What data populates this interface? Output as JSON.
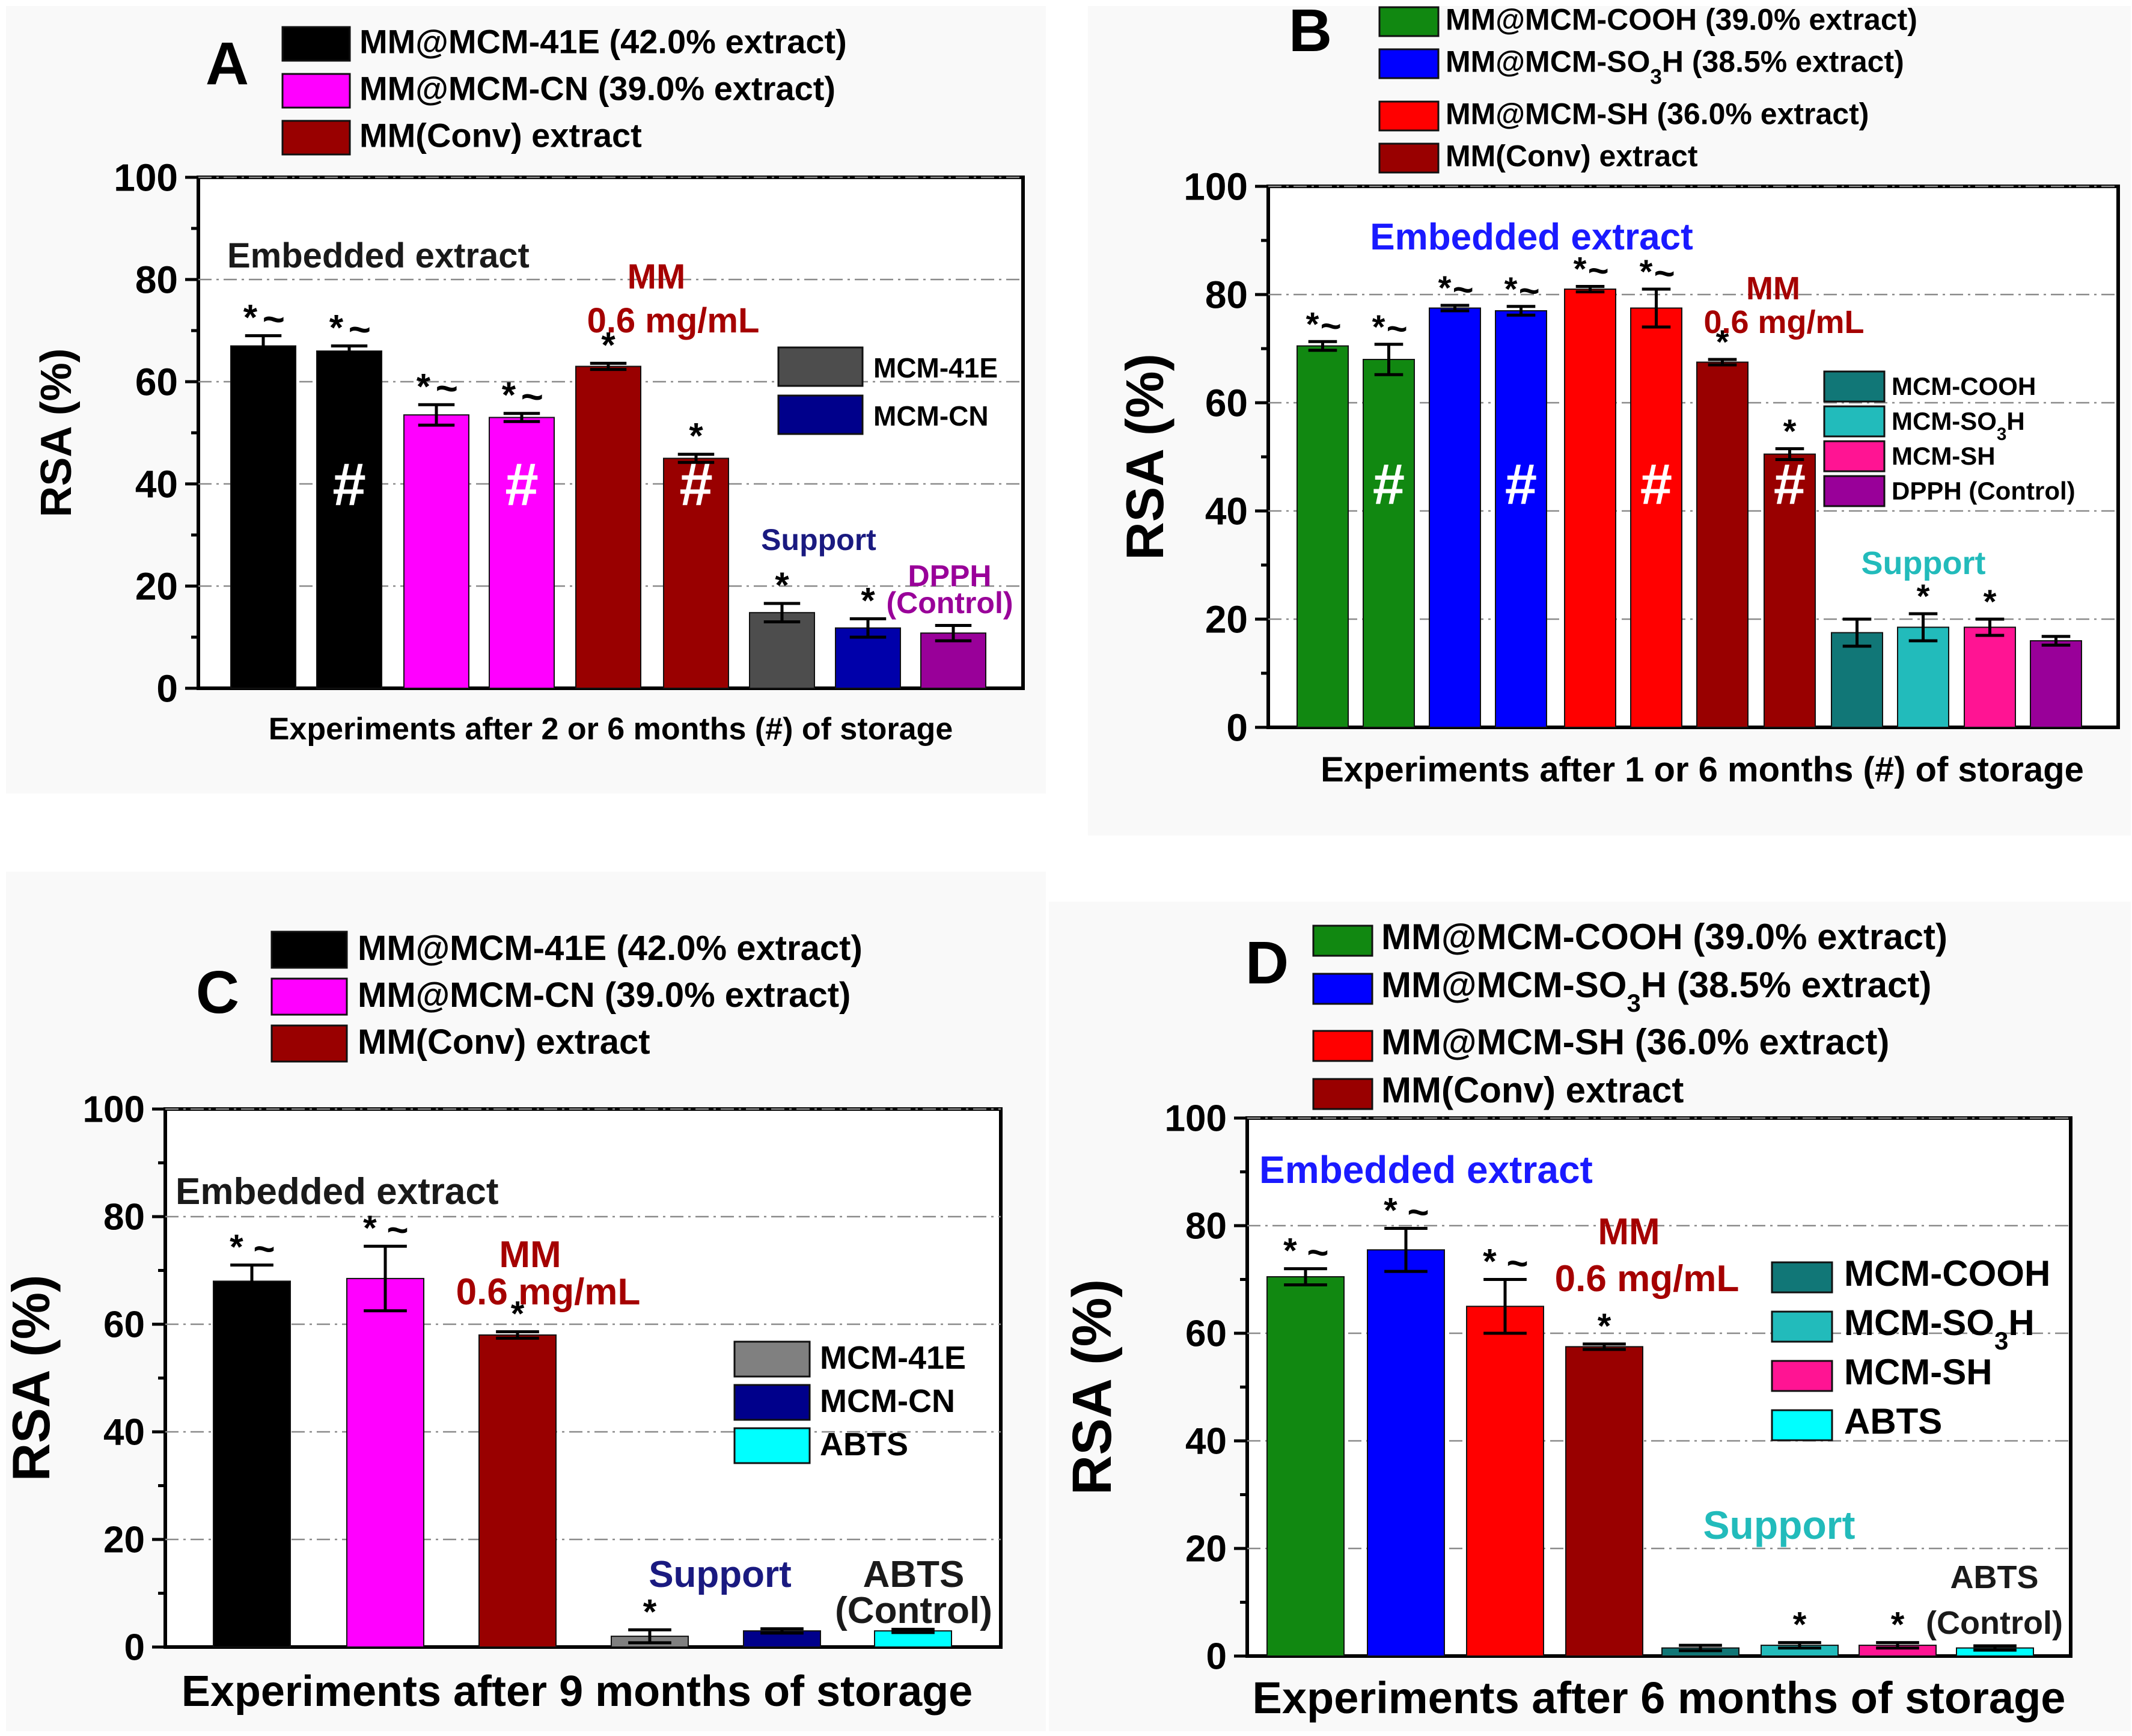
{
  "chart_data": [
    {
      "panel": "A",
      "type": "bar",
      "ylabel": "RSA (%)",
      "xlabel": "Experiments after 2 or 6 months (#) of storage",
      "ylim": [
        0,
        100
      ],
      "yticks": [
        "0",
        "20",
        "40",
        "60",
        "80",
        "100"
      ],
      "legend_top": [
        {
          "label": "MM@MCM-41E (42.0% extract)",
          "color": "#000000"
        },
        {
          "label": "MM@MCM-CN (39.0% extract)",
          "color": "#ff00ff"
        },
        {
          "label": "MM(Conv) extract",
          "color": "#990000"
        }
      ],
      "legend_inner": [
        {
          "label": "MCM-41E",
          "color": "#4d4d4d"
        },
        {
          "label": "MCM-CN",
          "color": "#00008b"
        }
      ],
      "bars": [
        {
          "value": 67,
          "error": 2.0,
          "color": "#000000",
          "star": "*",
          "tilde": "~",
          "hash": ""
        },
        {
          "value": 66,
          "error": 1.0,
          "color": "#000000",
          "star": "*",
          "tilde": "~",
          "hash": "#"
        },
        {
          "value": 53.5,
          "error": 2.0,
          "color": "#ff00ff",
          "star": "*",
          "tilde": "~",
          "hash": ""
        },
        {
          "value": 53,
          "error": 0.8,
          "color": "#ff00ff",
          "star": "*",
          "tilde": "~",
          "hash": "#"
        },
        {
          "value": 63,
          "error": 0.6,
          "color": "#990000",
          "star": "*",
          "tilde": "",
          "hash": ""
        },
        {
          "value": 45,
          "error": 0.8,
          "color": "#990000",
          "star": "*",
          "tilde": "",
          "hash": "#"
        },
        {
          "value": 14.8,
          "error": 1.8,
          "color": "#4d4d4d",
          "star": "*",
          "tilde": "",
          "hash": ""
        },
        {
          "value": 11.8,
          "error": 1.8,
          "color": "#0000aa",
          "star": "*",
          "tilde": "",
          "hash": ""
        },
        {
          "value": 10.8,
          "error": 1.5,
          "color": "#990099",
          "star": "",
          "tilde": "",
          "hash": ""
        }
      ],
      "annotations": [
        {
          "text": "Embedded extract",
          "color": "#1a1a1a"
        },
        {
          "text": "MM",
          "color": "#a50000"
        },
        {
          "text": "0.6 mg/mL",
          "color": "#a50000"
        },
        {
          "text": "Support",
          "color": "#1a1a80"
        },
        {
          "text": "DPPH",
          "color": "#990099"
        },
        {
          "text": "(Control)",
          "color": "#990099"
        }
      ]
    },
    {
      "panel": "B",
      "type": "bar",
      "ylabel": "RSA (%)",
      "xlabel": "Experiments after 1 or 6 months (#) of storage",
      "ylim": [
        0,
        100
      ],
      "yticks": [
        "0",
        "20",
        "40",
        "60",
        "80",
        "100"
      ],
      "legend_top": [
        {
          "label": "MM@MCM-COOH (39.0% extract)",
          "color": "#118811"
        },
        {
          "label": "MM@MCM-SO3H (38.5% extract)",
          "color": "#0000ff"
        },
        {
          "label": "MM@MCM-SH (36.0% extract)",
          "color": "#ff0000"
        },
        {
          "label": "MM(Conv) extract",
          "color": "#990000"
        }
      ],
      "legend_inner": [
        {
          "label": "MCM-COOH",
          "color": "#117777"
        },
        {
          "label": "MCM-SO3H",
          "color": "#22bbbb"
        },
        {
          "label": "MCM-SH",
          "color": "#ff1493"
        },
        {
          "label": "DPPH (Control)",
          "color": "#990099"
        }
      ],
      "bars": [
        {
          "value": 70.5,
          "error": 0.8,
          "color": "#118811",
          "star": "*",
          "tilde": "~",
          "hash": ""
        },
        {
          "value": 68,
          "error": 2.8,
          "color": "#118811",
          "star": "*",
          "tilde": "~",
          "hash": "#"
        },
        {
          "value": 77.5,
          "error": 0.5,
          "color": "#0000ff",
          "star": "*",
          "tilde": "~",
          "hash": ""
        },
        {
          "value": 77,
          "error": 0.8,
          "color": "#0000ff",
          "star": "*",
          "tilde": "~",
          "hash": "#"
        },
        {
          "value": 81,
          "error": 0.5,
          "color": "#ff0000",
          "star": "*",
          "tilde": "~",
          "hash": ""
        },
        {
          "value": 77.5,
          "error": 3.5,
          "color": "#ff0000",
          "star": "*",
          "tilde": "~",
          "hash": "#"
        },
        {
          "value": 67.5,
          "error": 0.5,
          "color": "#990000",
          "star": "*",
          "tilde": "",
          "hash": ""
        },
        {
          "value": 50.5,
          "error": 1.0,
          "color": "#990000",
          "star": "*",
          "tilde": "",
          "hash": "#"
        },
        {
          "value": 17.5,
          "error": 2.5,
          "color": "#117777",
          "star": "",
          "tilde": "",
          "hash": ""
        },
        {
          "value": 18.5,
          "error": 2.5,
          "color": "#22bbbb",
          "star": "*",
          "tilde": "",
          "hash": ""
        },
        {
          "value": 18.5,
          "error": 1.5,
          "color": "#ff1493",
          "star": "*",
          "tilde": "",
          "hash": ""
        },
        {
          "value": 16,
          "error": 0.8,
          "color": "#990099",
          "star": "",
          "tilde": "",
          "hash": ""
        }
      ],
      "annotations": [
        {
          "text": "Embedded extract",
          "color": "#1a1aff"
        },
        {
          "text": "MM",
          "color": "#a50000"
        },
        {
          "text": "0.6 mg/mL",
          "color": "#a50000"
        },
        {
          "text": "Support",
          "color": "#22bbbb"
        }
      ]
    },
    {
      "panel": "C",
      "type": "bar",
      "ylabel": "RSA (%)",
      "xlabel": "Experiments after 9 months of storage",
      "ylim": [
        0,
        100
      ],
      "yticks": [
        "0",
        "20",
        "40",
        "60",
        "80",
        "100"
      ],
      "legend_top": [
        {
          "label": "MM@MCM-41E (42.0% extract)",
          "color": "#000000"
        },
        {
          "label": "MM@MCM-CN (39.0% extract)",
          "color": "#ff00ff"
        },
        {
          "label": "MM(Conv) extract",
          "color": "#990000"
        }
      ],
      "legend_inner": [
        {
          "label": "MCM-41E",
          "color": "#808080"
        },
        {
          "label": "MCM-CN",
          "color": "#00008b"
        },
        {
          "label": "ABTS",
          "color": "#00ffff"
        }
      ],
      "bars": [
        {
          "value": 68,
          "error": 3.0,
          "color": "#000000",
          "star": "*",
          "tilde": "~",
          "hash": ""
        },
        {
          "value": 68.5,
          "error": 6.0,
          "color": "#ff00ff",
          "star": "*",
          "tilde": "~",
          "hash": ""
        },
        {
          "value": 58,
          "error": 0.6,
          "color": "#990000",
          "star": "*",
          "tilde": "",
          "hash": ""
        },
        {
          "value": 2,
          "error": 1.2,
          "color": "#808080",
          "star": "*",
          "tilde": "",
          "hash": ""
        },
        {
          "value": 3,
          "error": 0.4,
          "color": "#00008b",
          "star": "",
          "tilde": "",
          "hash": ""
        },
        {
          "value": 3,
          "error": 0.3,
          "color": "#00ffff",
          "star": "",
          "tilde": "",
          "hash": ""
        }
      ],
      "annotations": [
        {
          "text": "Embedded extract",
          "color": "#1a1a1a"
        },
        {
          "text": "MM",
          "color": "#a50000"
        },
        {
          "text": "0.6 mg/mL",
          "color": "#a50000"
        },
        {
          "text": "Support",
          "color": "#1a1a80"
        },
        {
          "text": "ABTS",
          "color": "#1a1a1a"
        },
        {
          "text": "(Control)",
          "color": "#1a1a1a"
        }
      ]
    },
    {
      "panel": "D",
      "type": "bar",
      "ylabel": "RSA (%)",
      "xlabel": "Experiments after 6 months of storage",
      "ylim": [
        0,
        100
      ],
      "yticks": [
        "0",
        "20",
        "40",
        "60",
        "80",
        "100"
      ],
      "legend_top": [
        {
          "label": "MM@MCM-COOH (39.0% extract)",
          "color": "#118811"
        },
        {
          "label": "MM@MCM-SO3H (38.5% extract)",
          "color": "#0000ff"
        },
        {
          "label": "MM@MCM-SH (36.0% extract)",
          "color": "#ff0000"
        },
        {
          "label": "MM(Conv) extract",
          "color": "#990000"
        }
      ],
      "legend_inner": [
        {
          "label": "MCM-COOH",
          "color": "#117777"
        },
        {
          "label": "MCM-SO3H",
          "color": "#22bbbb"
        },
        {
          "label": "MCM-SH",
          "color": "#ff1493"
        },
        {
          "label": "ABTS",
          "color": "#00ffff"
        }
      ],
      "bars": [
        {
          "value": 70.5,
          "error": 1.5,
          "color": "#118811",
          "star": "*",
          "tilde": "~",
          "hash": ""
        },
        {
          "value": 75.5,
          "error": 4.0,
          "color": "#0000ff",
          "star": "*",
          "tilde": "~",
          "hash": ""
        },
        {
          "value": 65,
          "error": 5.0,
          "color": "#ff0000",
          "star": "*",
          "tilde": "~",
          "hash": ""
        },
        {
          "value": 57.5,
          "error": 0.5,
          "color": "#990000",
          "star": "*",
          "tilde": "",
          "hash": ""
        },
        {
          "value": 1.5,
          "error": 0.5,
          "color": "#117777",
          "star": "",
          "tilde": "",
          "hash": ""
        },
        {
          "value": 2,
          "error": 0.5,
          "color": "#22bbbb",
          "star": "*",
          "tilde": "",
          "hash": ""
        },
        {
          "value": 2,
          "error": 0.5,
          "color": "#ff1493",
          "star": "*",
          "tilde": "",
          "hash": ""
        },
        {
          "value": 1.5,
          "error": 0.4,
          "color": "#00ffff",
          "star": "",
          "tilde": "",
          "hash": ""
        }
      ],
      "annotations": [
        {
          "text": "Embedded extract",
          "color": "#1a1aff"
        },
        {
          "text": "MM",
          "color": "#a50000"
        },
        {
          "text": "0.6 mg/mL",
          "color": "#a50000"
        },
        {
          "text": "Support",
          "color": "#22bbbb"
        },
        {
          "text": "ABTS",
          "color": "#1a1a1a"
        },
        {
          "text": "(Control)",
          "color": "#1a1a1a"
        }
      ]
    }
  ]
}
